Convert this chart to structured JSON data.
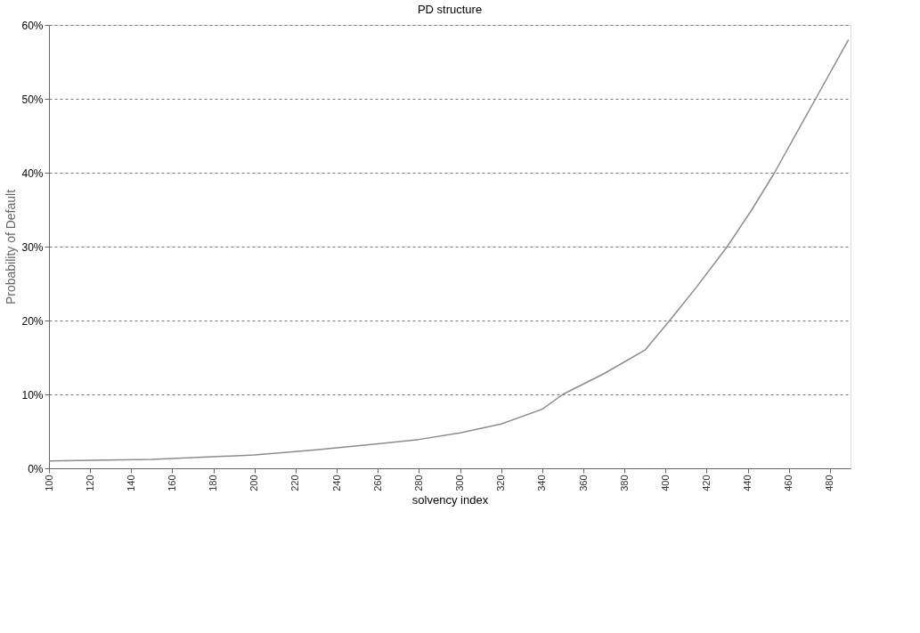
{
  "chart_data": {
    "type": "line",
    "title": "PD structure",
    "xlabel": "solvency index",
    "ylabel": "Probability of Default",
    "x": [
      100,
      150,
      200,
      230,
      260,
      280,
      300,
      320,
      340,
      350,
      370,
      390,
      402,
      415,
      430,
      442,
      453,
      465,
      473,
      489
    ],
    "series": [
      {
        "color": "#8c8c8c",
        "values": [
          1.0,
          1.2,
          1.8,
          2.5,
          3.3,
          3.9,
          4.8,
          6.0,
          8.0,
          10,
          12.8,
          16.0,
          20,
          24.5,
          30,
          35,
          40,
          46,
          50,
          58
        ]
      }
    ],
    "xlim": [
      100,
      490
    ],
    "xticks": [
      100,
      120,
      140,
      160,
      180,
      200,
      220,
      240,
      260,
      280,
      300,
      320,
      340,
      360,
      380,
      400,
      420,
      440,
      460,
      480
    ],
    "ylim": [
      0,
      60
    ],
    "yticks": [
      {
        "value": 0,
        "label": "0%"
      },
      {
        "value": 10,
        "label": "10%"
      },
      {
        "value": 20,
        "label": "20%"
      },
      {
        "value": 30,
        "label": "30%"
      },
      {
        "value": 40,
        "label": "40%"
      },
      {
        "value": 50,
        "label": "50%"
      },
      {
        "value": 60,
        "label": "60%"
      }
    ],
    "grid": "y",
    "marker": "none",
    "line_style": "solid"
  }
}
